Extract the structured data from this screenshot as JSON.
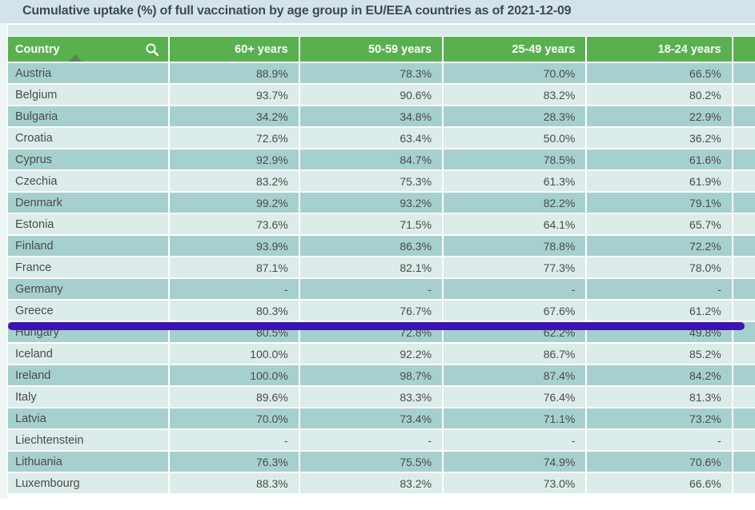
{
  "title": "Cumulative uptake (%) of full vaccination by age group in EU/EEA countries as of 2021-12-09",
  "header": {
    "search_icon": "magnifying-glass",
    "sort_icon": "ascending-triangle",
    "sorted_column": "Country",
    "sort_direction": "ascending"
  },
  "chart_data": {
    "type": "table",
    "title": "Cumulative uptake (%) of full vaccination by age group in EU/EEA countries as of 2021-12-09",
    "columns": [
      "Country",
      "60+ years",
      "50-59 years",
      "25-49 years",
      "18-24 years"
    ],
    "missing_value_marker": "-",
    "rows": [
      {
        "country": "Austria",
        "values": [
          "88.9%",
          "78.3%",
          "70.0%",
          "66.5%"
        ]
      },
      {
        "country": "Belgium",
        "values": [
          "93.7%",
          "90.6%",
          "83.2%",
          "80.2%"
        ]
      },
      {
        "country": "Bulgaria",
        "values": [
          "34.2%",
          "34.8%",
          "28.3%",
          "22.9%"
        ]
      },
      {
        "country": "Croatia",
        "values": [
          "72.6%",
          "63.4%",
          "50.0%",
          "36.2%"
        ]
      },
      {
        "country": "Cyprus",
        "values": [
          "92.9%",
          "84.7%",
          "78.5%",
          "61.6%"
        ]
      },
      {
        "country": "Czechia",
        "values": [
          "83.2%",
          "75.3%",
          "61.3%",
          "61.9%"
        ]
      },
      {
        "country": "Denmark",
        "values": [
          "99.2%",
          "93.2%",
          "82.2%",
          "79.1%"
        ]
      },
      {
        "country": "Estonia",
        "values": [
          "73.6%",
          "71.5%",
          "64.1%",
          "65.7%"
        ]
      },
      {
        "country": "Finland",
        "values": [
          "93.9%",
          "86.3%",
          "78.8%",
          "72.2%"
        ]
      },
      {
        "country": "France",
        "values": [
          "87.1%",
          "82.1%",
          "77.3%",
          "78.0%"
        ]
      },
      {
        "country": "Germany",
        "values": [
          "-",
          "-",
          "-",
          "-"
        ]
      },
      {
        "country": "Greece",
        "values": [
          "80.3%",
          "76.7%",
          "67.6%",
          "61.2%"
        ]
      },
      {
        "country": "Hungary",
        "values": [
          "80.5%",
          "72.8%",
          "62.2%",
          "49.8%"
        ]
      },
      {
        "country": "Iceland",
        "values": [
          "100.0%",
          "92.2%",
          "86.7%",
          "85.2%"
        ]
      },
      {
        "country": "Ireland",
        "values": [
          "100.0%",
          "98.7%",
          "87.4%",
          "84.2%"
        ]
      },
      {
        "country": "Italy",
        "values": [
          "89.6%",
          "83.3%",
          "76.4%",
          "81.3%"
        ]
      },
      {
        "country": "Latvia",
        "values": [
          "70.0%",
          "73.4%",
          "71.1%",
          "73.2%"
        ]
      },
      {
        "country": "Liechtenstein",
        "values": [
          "-",
          "-",
          "-",
          "-"
        ]
      },
      {
        "country": "Lithuania",
        "values": [
          "76.3%",
          "75.5%",
          "74.9%",
          "70.6%"
        ]
      },
      {
        "country": "Luxembourg",
        "values": [
          "88.3%",
          "83.2%",
          "73.0%",
          "66.6%"
        ]
      }
    ],
    "annotation": {
      "type": "horizontal-highlight-line",
      "below_row": "Greece",
      "color": "#3a14b0"
    },
    "layout_hints": {
      "row_striping": [
        "dark",
        "light"
      ],
      "rightmost_column_clipped": true,
      "value_alignment": "right"
    }
  },
  "colors": {
    "title_band": "#d4e3ea",
    "header_green": "#58b14e",
    "row_dark_teal": "#a6d0cd",
    "row_light_teal": "#dbecea",
    "text": "#4b4b4b",
    "annotation_line": "#3a14b0"
  }
}
